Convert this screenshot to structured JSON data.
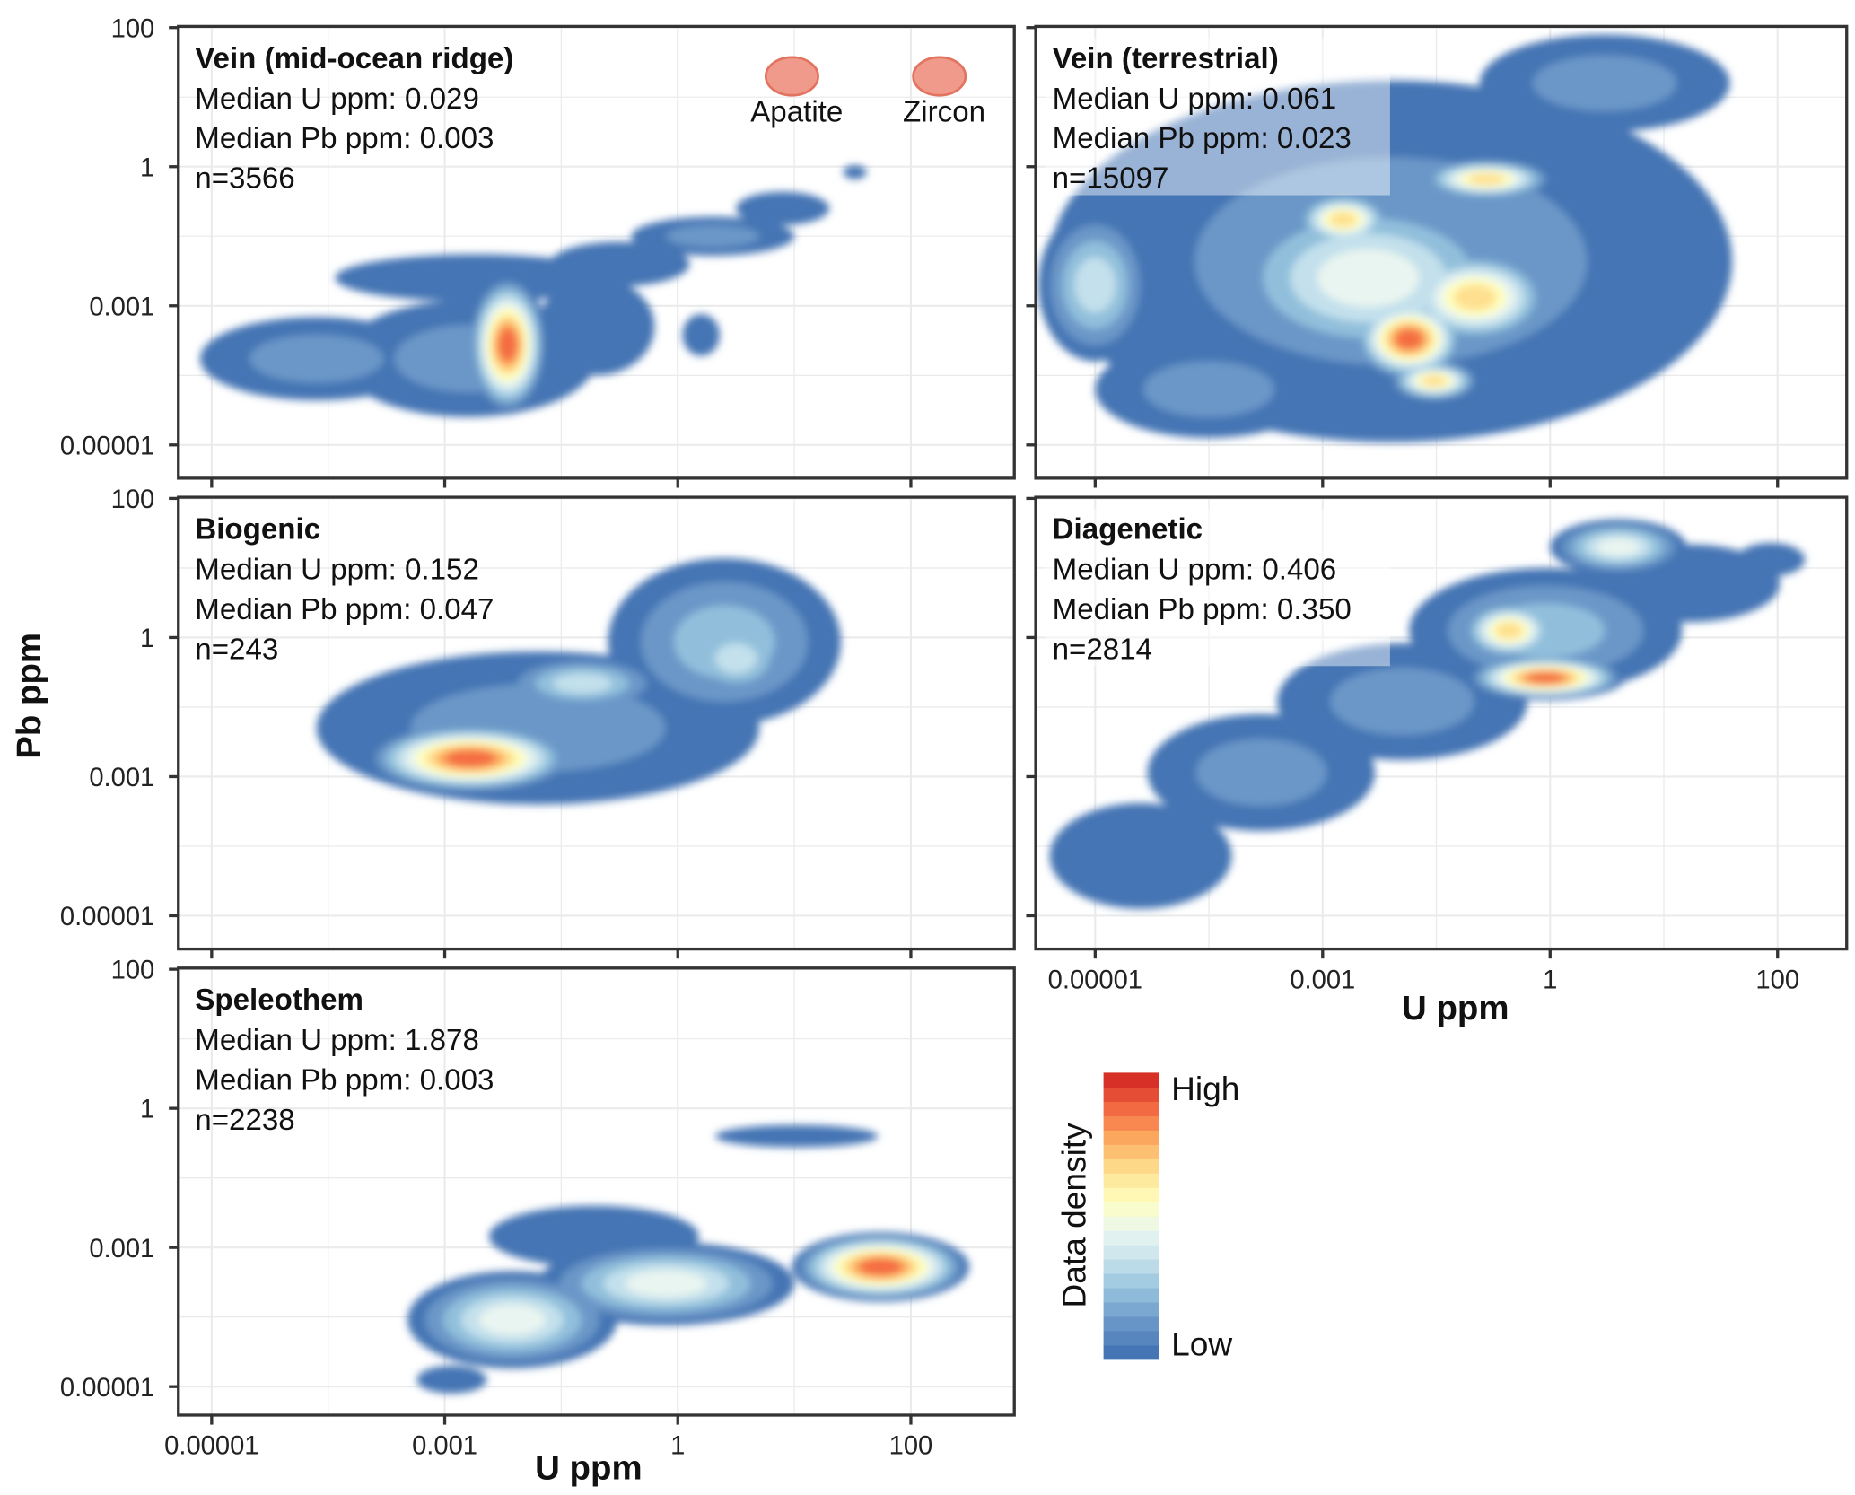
{
  "chart_data": {
    "type": "heatmap",
    "subtype": "2d-density-contour",
    "xlabel": "U ppm",
    "ylabel": "Pb ppm",
    "x_ticks": [
      "0.00001",
      "0.001",
      "1",
      "100"
    ],
    "y_ticks": [
      "100",
      "1",
      "0.001",
      "0.00001"
    ],
    "scale": "log",
    "position_units": "tick-index (0 = 0.00001, 1 = 0.001, 2 = 1, 3 = 100)",
    "grid": true,
    "legend": {
      "title": "Data density",
      "high_label": "High",
      "low_label": "Low",
      "placement": "bottom-right",
      "colors": [
        "#4575b4",
        "#6a97c8",
        "#91bfdb",
        "#c3e0ec",
        "#e9f5f0",
        "#ffffbf",
        "#fee090",
        "#fdae61",
        "#f46d43",
        "#d73027"
      ]
    },
    "reference_points": [
      {
        "label": "Apatite",
        "color": "#f09a8c"
      },
      {
        "label": "Zircon",
        "color": "#f09a8c"
      }
    ],
    "panels": [
      {
        "title": "Vein (mid-ocean ridge)",
        "lines": [
          "Median U ppm: 0.029",
          "Median Pb ppm: 0.003",
          "n=3566"
        ],
        "median_u": 0.029,
        "median_pb": 0.003,
        "n": 3566,
        "density_features": [
          {
            "x": 0.45,
            "y": 0.62,
            "rx": 0.5,
            "ry": 0.3,
            "level": 2
          },
          {
            "x": 1.1,
            "y": 0.62,
            "rx": 0.55,
            "ry": 0.42,
            "level": 2
          },
          {
            "x": 1.13,
            "y": 1.2,
            "rx": 0.6,
            "ry": 0.17,
            "level": 1
          },
          {
            "x": 1.75,
            "y": 1.3,
            "rx": 0.3,
            "ry": 0.16,
            "level": 1
          },
          {
            "x": 2.15,
            "y": 1.5,
            "rx": 0.35,
            "ry": 0.14,
            "level": 2
          },
          {
            "x": 2.45,
            "y": 1.7,
            "rx": 0.2,
            "ry": 0.12,
            "level": 1
          },
          {
            "x": 1.65,
            "y": 0.85,
            "rx": 0.25,
            "ry": 0.35,
            "level": 1
          },
          {
            "x": 2.1,
            "y": 0.79,
            "rx": 0.08,
            "ry": 0.15,
            "level": 1
          },
          {
            "x": 2.76,
            "y": 1.96,
            "rx": 0.05,
            "ry": 0.05,
            "level": 1
          },
          {
            "x": 1.27,
            "y": 0.72,
            "rx": 0.17,
            "ry": 0.5,
            "level": 9
          }
        ]
      },
      {
        "title": "Vein (terrestrial)",
        "lines": [
          "Median U ppm: 0.061",
          "Median Pb ppm: 0.023",
          "n=15097"
        ],
        "median_u": 0.061,
        "median_pb": 0.023,
        "n": 15097,
        "density_features": [
          {
            "x": 1.3,
            "y": 1.32,
            "rx": 1.5,
            "ry": 1.3,
            "level": 2
          },
          {
            "x": 2.24,
            "y": 2.6,
            "rx": 0.55,
            "ry": 0.35,
            "level": 2
          },
          {
            "x": 0.0,
            "y": 1.15,
            "rx": 0.25,
            "ry": 0.55,
            "level": 4
          },
          {
            "x": 0.5,
            "y": 0.4,
            "rx": 0.5,
            "ry": 0.35,
            "level": 2
          },
          {
            "x": 1.2,
            "y": 1.2,
            "rx": 0.7,
            "ry": 0.65,
            "level": 5
          },
          {
            "x": 1.67,
            "y": 1.06,
            "rx": 0.35,
            "ry": 0.35,
            "level": 7
          },
          {
            "x": 1.38,
            "y": 0.76,
            "rx": 0.25,
            "ry": 0.3,
            "level": 9
          },
          {
            "x": 1.09,
            "y": 1.62,
            "rx": 0.22,
            "ry": 0.2,
            "level": 7
          },
          {
            "x": 1.72,
            "y": 1.91,
            "rx": 0.3,
            "ry": 0.15,
            "level": 7
          },
          {
            "x": 1.49,
            "y": 0.46,
            "rx": 0.2,
            "ry": 0.15,
            "level": 7
          }
        ]
      },
      {
        "title": "Biogenic",
        "lines": [
          "Median U ppm: 0.152",
          "Median Pb ppm: 0.047",
          "n=243"
        ],
        "median_u": 0.152,
        "median_pb": 0.047,
        "n": 243,
        "density_features": [
          {
            "x": 1.4,
            "y": 1.35,
            "rx": 0.95,
            "ry": 0.55,
            "level": 2
          },
          {
            "x": 2.2,
            "y": 1.97,
            "rx": 0.5,
            "ry": 0.6,
            "level": 3
          },
          {
            "x": 2.25,
            "y": 1.85,
            "rx": 0.25,
            "ry": 0.3,
            "level": 4
          },
          {
            "x": 1.59,
            "y": 1.67,
            "rx": 0.35,
            "ry": 0.2,
            "level": 4
          },
          {
            "x": 1.11,
            "y": 1.13,
            "rx": 0.45,
            "ry": 0.25,
            "level": 9
          }
        ]
      },
      {
        "title": "Diagenetic",
        "lines": [
          "Median U ppm: 0.406",
          "Median Pb ppm: 0.350",
          "n=2814"
        ],
        "median_u": 0.406,
        "median_pb": 0.35,
        "n": 2814,
        "density_features": [
          {
            "x": 0.2,
            "y": 0.43,
            "rx": 0.4,
            "ry": 0.38,
            "level": 1
          },
          {
            "x": 0.73,
            "y": 1.03,
            "rx": 0.5,
            "ry": 0.42,
            "level": 2
          },
          {
            "x": 1.35,
            "y": 1.54,
            "rx": 0.55,
            "ry": 0.42,
            "level": 2
          },
          {
            "x": 1.98,
            "y": 2.05,
            "rx": 0.6,
            "ry": 0.45,
            "level": 3
          },
          {
            "x": 2.61,
            "y": 2.39,
            "rx": 0.4,
            "ry": 0.28,
            "level": 1
          },
          {
            "x": 2.97,
            "y": 2.56,
            "rx": 0.15,
            "ry": 0.12,
            "level": 1
          },
          {
            "x": 2.3,
            "y": 2.65,
            "rx": 0.3,
            "ry": 0.2,
            "level": 5
          },
          {
            "x": 1.82,
            "y": 2.05,
            "rx": 0.22,
            "ry": 0.22,
            "level": 7
          },
          {
            "x": 1.98,
            "y": 1.71,
            "rx": 0.35,
            "ry": 0.16,
            "level": 9
          }
        ]
      },
      {
        "title": "Speleothem",
        "lines": [
          "Median U ppm: 1.878",
          "Median Pb ppm: 0.003",
          "n=2238"
        ],
        "median_u": 1.878,
        "median_pb": 0.003,
        "n": 2238,
        "density_features": [
          {
            "x": 1.29,
            "y": 0.48,
            "rx": 0.45,
            "ry": 0.35,
            "level": 5
          },
          {
            "x": 1.95,
            "y": 0.74,
            "rx": 0.55,
            "ry": 0.3,
            "level": 5
          },
          {
            "x": 1.64,
            "y": 1.08,
            "rx": 0.45,
            "ry": 0.22,
            "level": 1
          },
          {
            "x": 2.87,
            "y": 0.86,
            "rx": 0.38,
            "ry": 0.25,
            "level": 9
          },
          {
            "x": 2.51,
            "y": 1.8,
            "rx": 0.35,
            "ry": 0.08,
            "level": 1
          },
          {
            "x": 1.03,
            "y": 0.05,
            "rx": 0.15,
            "ry": 0.1,
            "level": 1
          }
        ]
      }
    ]
  }
}
